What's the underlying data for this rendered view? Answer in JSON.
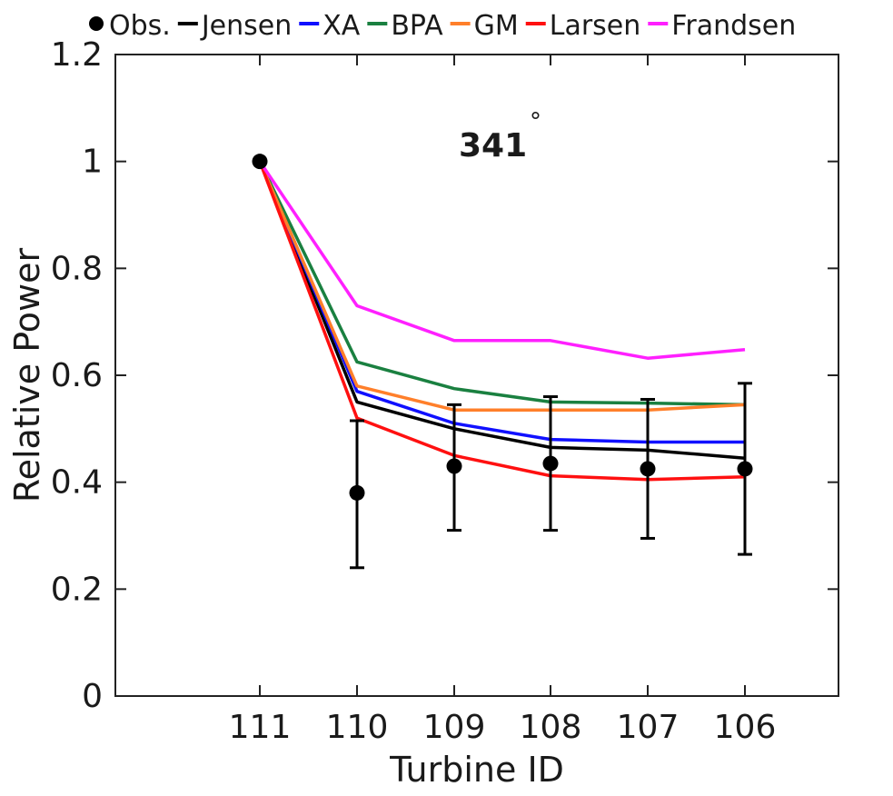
{
  "chart_data": {
    "type": "line",
    "title": "",
    "annotation": "341",
    "annotation_super": "°",
    "xlabel": "Turbine ID",
    "ylabel": "Relative Power",
    "x_categories": [
      "111",
      "110",
      "109",
      "108",
      "107",
      "106"
    ],
    "ylim": [
      0,
      1.2
    ],
    "y_ticks": [
      "0",
      "0.2",
      "0.4",
      "0.6",
      "0.8",
      "1",
      "1.2"
    ],
    "y_tick_values": [
      0,
      0.2,
      0.4,
      0.6,
      0.8,
      1.0,
      1.2
    ],
    "grid": false,
    "legend_position": "top",
    "observations": {
      "name": "Obs.",
      "color": "#000000",
      "values": [
        1.0,
        0.38,
        0.43,
        0.435,
        0.425,
        0.425
      ],
      "error_lower": [
        1.0,
        0.24,
        0.31,
        0.31,
        0.295,
        0.265
      ],
      "error_upper": [
        1.0,
        0.515,
        0.545,
        0.56,
        0.555,
        0.585
      ]
    },
    "series": [
      {
        "name": "Jensen",
        "color": "#000000",
        "values": [
          1.0,
          0.55,
          0.5,
          0.465,
          0.46,
          0.445
        ]
      },
      {
        "name": "XA",
        "color": "#1010ff",
        "values": [
          1.0,
          0.57,
          0.51,
          0.48,
          0.475,
          0.475
        ]
      },
      {
        "name": "BPA",
        "color": "#1a8040",
        "values": [
          1.0,
          0.625,
          0.575,
          0.55,
          0.548,
          0.545
        ]
      },
      {
        "name": "GM",
        "color": "#ff7f2a",
        "values": [
          1.0,
          0.58,
          0.535,
          0.535,
          0.535,
          0.545
        ]
      },
      {
        "name": "Larsen",
        "color": "#ff1010",
        "values": [
          1.0,
          0.52,
          0.45,
          0.412,
          0.405,
          0.41
        ]
      },
      {
        "name": "Frandsen",
        "color": "#ff20ff",
        "values": [
          1.0,
          0.73,
          0.665,
          0.665,
          0.632,
          0.648
        ]
      }
    ]
  }
}
